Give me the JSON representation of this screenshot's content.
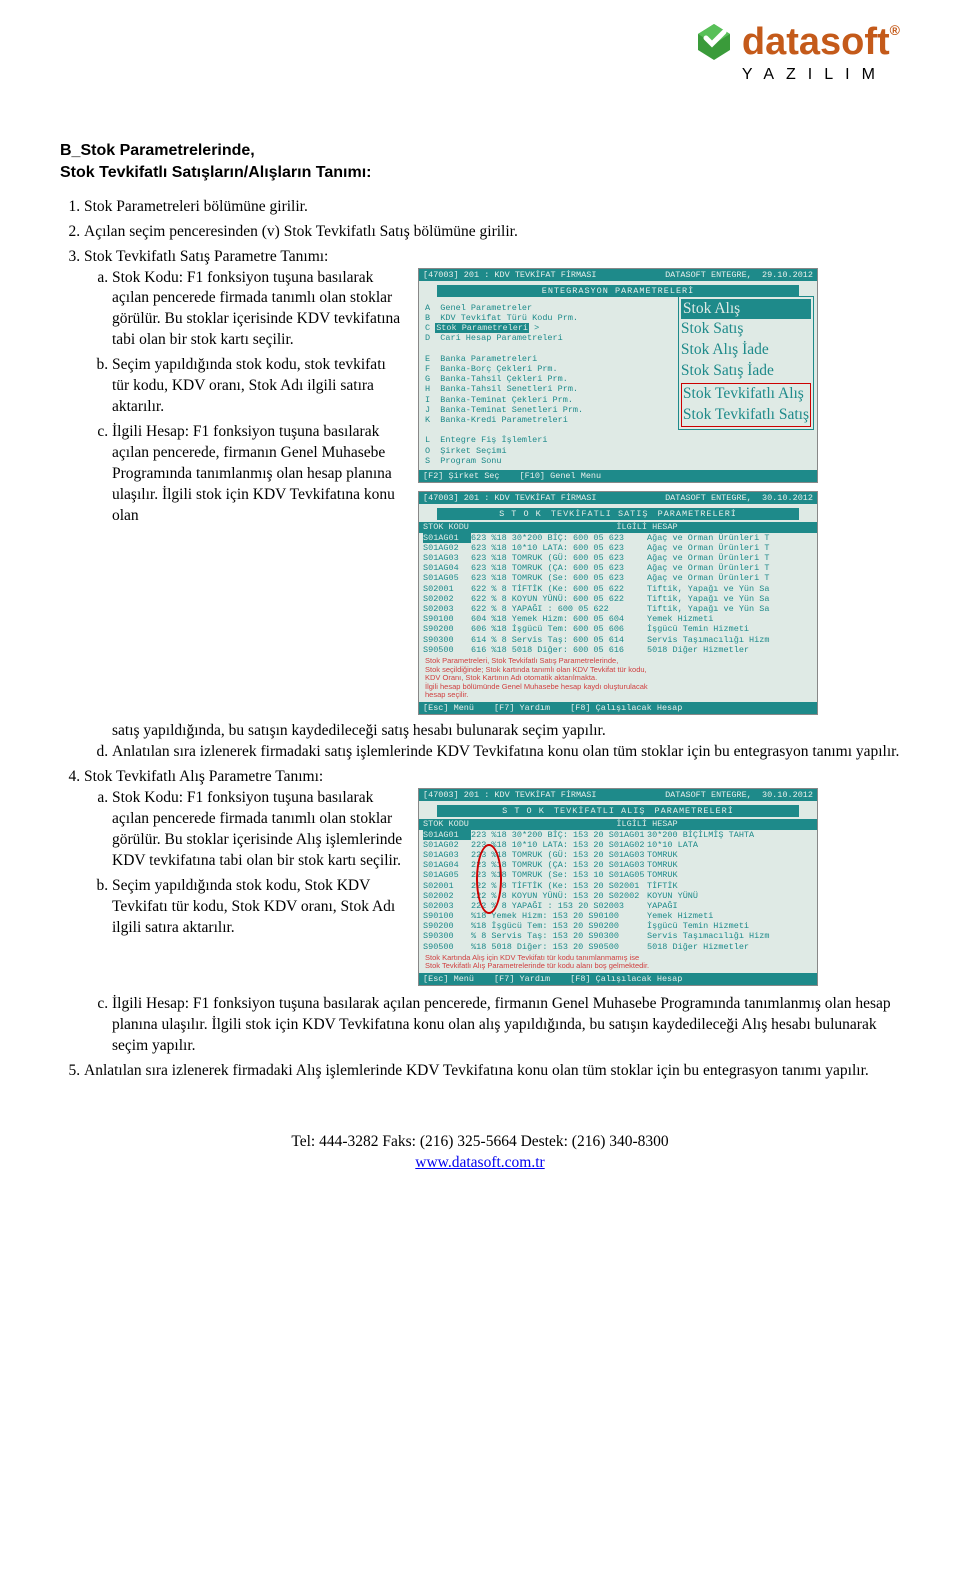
{
  "logo": {
    "brand": "datasoft",
    "sub": "YAZILIM",
    "trade": "®"
  },
  "heading": {
    "l1": "B_Stok Parametrelerinde,",
    "l2": "Stok Tevkifatlı Satışların/Alışların Tanımı:"
  },
  "li1": "Stok Parametreleri bölümüne girilir.",
  "li2": "Açılan seçim penceresinden (v) Stok Tevkifatlı Satış bölümüne girilir.",
  "li3_intro": "Stok Tevkifatlı Satış Parametre Tanımı:",
  "li3a": "Stok Kodu: F1 fonksiyon tuşuna basılarak açılan pencerede firmada tanımlı olan stoklar görülür. Bu stoklar içerisinde KDV tevkifatına tabi olan bir stok kartı seçilir.",
  "li3b": "Seçim yapıldığında stok kodu, stok tevkifatı tür kodu, KDV oranı, Stok Adı ilgili satıra aktarılır.",
  "li3c": "İlgili Hesap: F1 fonksiyon tuşuna basılarak açılan pencerede, firmanın Genel Muhasebe Programında tanımlanmış olan hesap planına ulaşılır. İlgili stok için KDV Tevkifatına konu olan satış yapıldığında, bu satışın kaydedileceği satış hesabı bulunarak seçim yapılır.",
  "li3d": "Anlatılan sıra izlenerek firmadaki satış işlemlerinde KDV Tevkifatına konu olan tüm stoklar için bu entegrasyon tanımı yapılır.",
  "li4_intro": "Stok Tevkifatlı Alış Parametre Tanımı:",
  "li4a": "Stok Kodu: F1 fonksiyon tuşuna basılarak açılan pencerede firmada tanımlı olan stoklar görülür. Bu stoklar içerisinde Alış işlemlerinde KDV tevkifatına tabi olan bir stok kartı seçilir.",
  "li4b": "Seçim yapıldığında stok kodu, Stok KDV Tevkifatı tür kodu, Stok KDV oranı, Stok Adı ilgili satıra aktarılır.",
  "li4c": "İlgili Hesap: F1 fonksiyon tuşuna basılarak açılan pencerede, firmanın Genel Muhasebe Programında tanımlanmış olan hesap planına ulaşılır. İlgili stok için KDV Tevkifatına konu olan alış yapıldığında, bu satışın kaydedileceği Alış hesabı bulunarak seçim yapılır.",
  "li5": "Anlatılan sıra izlenerek firmadaki Alış işlemlerinde KDV Tevkifatına konu olan tüm stoklar için bu entegrasyon tanımı yapılır.",
  "ss1": {
    "title_left": "[47003] 201 : KDV TEVKİFAT FİRMASI",
    "title_right": "DATASOFT ENTEGRE,",
    "date": "29.10.2012",
    "header": "ENTEGRASYON PARAMETRELERİ",
    "menuA": "A  Genel Parametreler",
    "menuB": "B  KDV Tevkifat Türü Kodu Prm.",
    "menuC_key": "C ",
    "menuC": "Stok Parametreleri",
    "menuD": "D  Cari Hesap Parametreleri",
    "menuE": "E  Banka Parametreleri",
    "menuF": "F  Banka-Borç Çekleri Prm.",
    "menuG": "G  Banka-Tahsil Çekleri Prm.",
    "menuH": "H  Banka-Tahsil Senetleri Prm.",
    "menuI": "I  Banka-Teminat Çekleri Prm.",
    "menuJ": "J  Banka-Teminat Senetleri Prm.",
    "menuK": "K  Banka-Kredi Parametreleri",
    "menuL": "L  Entegre Fiş İşlemleri",
    "menuO": "O  Şirket Seçimi",
    "menuS": "S  Program Sonu",
    "sub1": "Stok Alış",
    "sub2": "Stok Satış",
    "sub3": "Stok Alış İade",
    "sub4": "Stok Satış İade",
    "sub5": "Stok Tevkifatlı Alış",
    "sub6": "Stok Tevkifatlı Satış",
    "f2": "[F2] Şirket Seç",
    "f10": "[F10] Genel Menu"
  },
  "ss2": {
    "title_left": "[47003] 201 : KDV TEVKİFAT FİRMASI",
    "title_right": "DATASOFT ENTEGRE,",
    "date": "30.10.2012",
    "header": "S T O K  TEVKİFATLI SATIŞ  PARAMETRELERİ",
    "head_c1": "STOK KODU",
    "head_c2": "İLGİLİ HESAP",
    "rows": [
      {
        "c1": "S01AG01",
        "c2": "623 %18 30*200 BİÇ: 600 05 623",
        "c3": "Ağaç ve Orman Ürünleri T"
      },
      {
        "c1": "S01AG02",
        "c2": "623 %18 10*10 LATA: 600 05 623",
        "c3": "Ağaç ve Orman Ürünleri T"
      },
      {
        "c1": "S01AG03",
        "c2": "623 %18 TOMRUK (GÜ: 600 05 623",
        "c3": "Ağaç ve Orman Ürünleri T"
      },
      {
        "c1": "S01AG04",
        "c2": "623 %18 TOMRUK (ÇA: 600 05 623",
        "c3": "Ağaç ve Orman Ürünleri T"
      },
      {
        "c1": "S01AG05",
        "c2": "623 %18 TOMRUK (Se: 600 05 623",
        "c3": "Ağaç ve Orman Ürünleri T"
      },
      {
        "c1": "S02001",
        "c2": "622 % 8 TİFTİK (Ke: 600 05 622",
        "c3": "Tiftik, Yapağı ve Yün Sa"
      },
      {
        "c1": "S02002",
        "c2": "622 % 8 KOYUN YÜNÜ: 600 05 622",
        "c3": "Tiftik, Yapağı ve Yün Sa"
      },
      {
        "c1": "S02003",
        "c2": "622 % 8 YAPAĞI   : 600 05 622",
        "c3": "Tiftik, Yapağı ve Yün Sa"
      },
      {
        "c1": "S90100",
        "c2": "604 %18 Yemek Hizm: 600 05 604",
        "c3": "Yemek Hizmeti"
      },
      {
        "c1": "S90200",
        "c2": "606 %18 İşgücü Tem: 600 05 606",
        "c3": "İşgücü Temin Hizmeti"
      },
      {
        "c1": "S90300",
        "c2": "614 % 8 Servis Taş: 600 05 614",
        "c3": "Servis Taşımacılığı Hizm"
      },
      {
        "c1": "S90500",
        "c2": "616 %18 5018 Diğer: 600 05 616",
        "c3": "5018 Diğer Hizmetler"
      }
    ],
    "note1": "Stok Parametreleri, Stok Tevkifatlı Satış Parametrelerinde,",
    "note2": "Stok seçildiğinde; Stok kartında tanımlı olan KDV Tevkifat tür kodu,",
    "note3": "KDV Oranı, Stok Kartının Adı otomatik aktarılmakta.",
    "note4": "İlgili hesap bölümünde Genel Muhasebe hesap kaydı oluşturulacak",
    "note5": "hesap seçilir.",
    "esc": "[Esc] Menü",
    "f7": "[F7] Yardım",
    "f8": "[F8] Çalışılacak Hesap"
  },
  "ss3": {
    "title_left": "[47003] 201 : KDV TEVKİFAT FİRMASI",
    "title_right": "DATASOFT ENTEGRE,",
    "date": "30.10.2012",
    "header": "S T O K  TEVKİFATLI ALIŞ  PARAMETRELERİ",
    "head_c1": "STOK KODU",
    "head_c2": "İLGİLİ HESAP",
    "rows": [
      {
        "c1": "S01AG01",
        "c2": "223 %18 30*200 BİÇ: 153 20 S01AG01",
        "c3": "30*200 BİÇİLMİŞ TAHTA"
      },
      {
        "c1": "S01AG02",
        "c2": "223 %18 10*10 LATA: 153 20 S01AG02",
        "c3": "10*10 LATA"
      },
      {
        "c1": "S01AG03",
        "c2": "223 %18 TOMRUK (GÜ: 153 20 S01AG03",
        "c3": "TOMRUK"
      },
      {
        "c1": "S01AG04",
        "c2": "223 %18 TOMRUK (ÇA: 153 20 S01AG03",
        "c3": "TOMRUK"
      },
      {
        "c1": "S01AG05",
        "c2": "223 %18 TOMRUK (Se: 153 10 S01AG05",
        "c3": "TOMRUK"
      },
      {
        "c1": "S02001",
        "c2": "222 % 8 TİFTİK (Ke: 153 20 S02001",
        "c3": "TİFTİK"
      },
      {
        "c1": "S02002",
        "c2": "222 % 8 KOYUN YÜNÜ: 153 20 S02002",
        "c3": "KOYUN YÜNÜ"
      },
      {
        "c1": "S02003",
        "c2": "222 % 8 YAPAĞI   : 153 20 S02003",
        "c3": "YAPAĞI"
      },
      {
        "c1": "S90100",
        "c2": "   %18 Yemek Hizm: 153 20 S90100",
        "c3": "Yemek Hizmeti"
      },
      {
        "c1": "S90200",
        "c2": "   %18 İşgücü Tem: 153 20 S90200",
        "c3": "İşgücü Temin Hizmeti"
      },
      {
        "c1": "S90300",
        "c2": "   % 8 Servis Taş: 153 20 S90300",
        "c3": "Servis Taşımacılığı Hizm"
      },
      {
        "c1": "S90500",
        "c2": "   %18 5018 Diğer: 153 20 S90500",
        "c3": "5018 Diğer Hizmetler"
      }
    ],
    "note1": "Stok Kartında Alış için KDV Tevkifatı tür kodu tanımlanmamış ise",
    "note2": "Stok Tevkifatlı Alış Parametrelerinde tür kodu alanı boş gelmektedir.",
    "esc": "[Esc] Menü",
    "f7": "[F7] Yardım",
    "f8": "[F8] Çalışılacak Hesap"
  },
  "footer": {
    "line1": "Tel: 444-3282 Faks: (216) 325-5664    Destek: (216) 340-8300",
    "url": "www.datasoft.com.tr"
  }
}
